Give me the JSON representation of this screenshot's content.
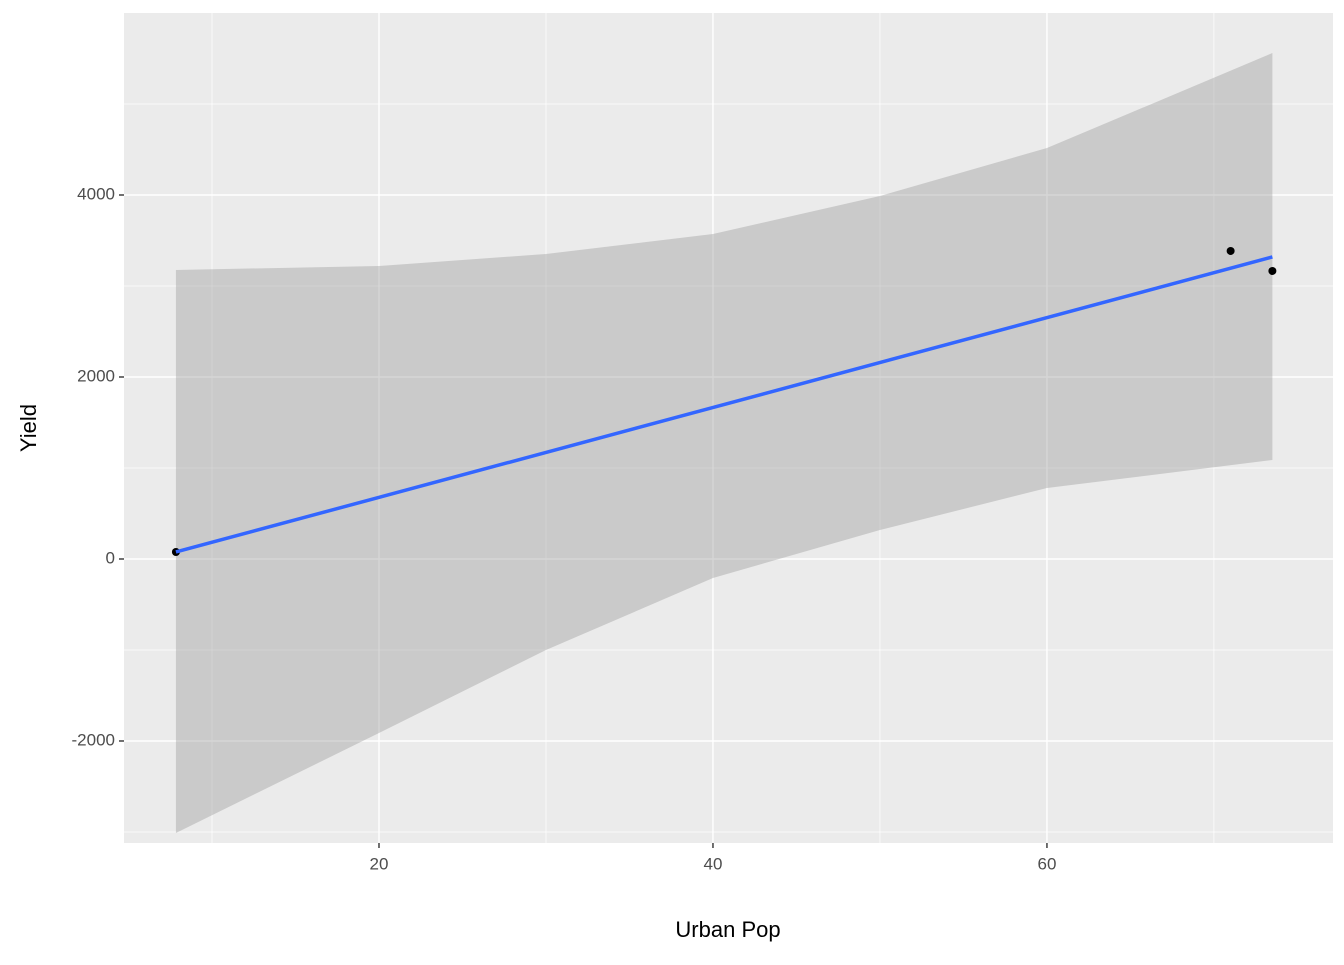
{
  "chart_data": {
    "type": "scatter",
    "x_label": "Urban Pop",
    "y_label": "Yield",
    "x": [
      7.84,
      71.0,
      73.5
    ],
    "y": [
      77,
      3385,
      3165
    ],
    "color": "#000000",
    "fit": {
      "x": [
        7.84,
        73.5
      ],
      "y": [
        77,
        3319
      ],
      "color": "#3366ff"
    },
    "band": {
      "x": [
        7.84,
        20,
        30,
        40,
        50,
        60,
        73.5
      ],
      "upper": [
        3176,
        3220,
        3352,
        3571,
        3989,
        4516,
        5560
      ],
      "lower": [
        -3011,
        -1912,
        -1000,
        -209,
        319,
        780,
        1088
      ],
      "color": "#999999"
    },
    "xlim": [
      4.73,
      77.13
    ],
    "ylim": [
      -3121,
      6000
    ],
    "xticks": [
      20,
      40,
      60
    ],
    "yticks": [
      -2000,
      0,
      2000,
      4000
    ],
    "xminor": [
      10,
      30,
      50,
      70
    ],
    "yminor": [
      -3000,
      -1000,
      1000,
      3000,
      5000
    ],
    "grid": true
  }
}
